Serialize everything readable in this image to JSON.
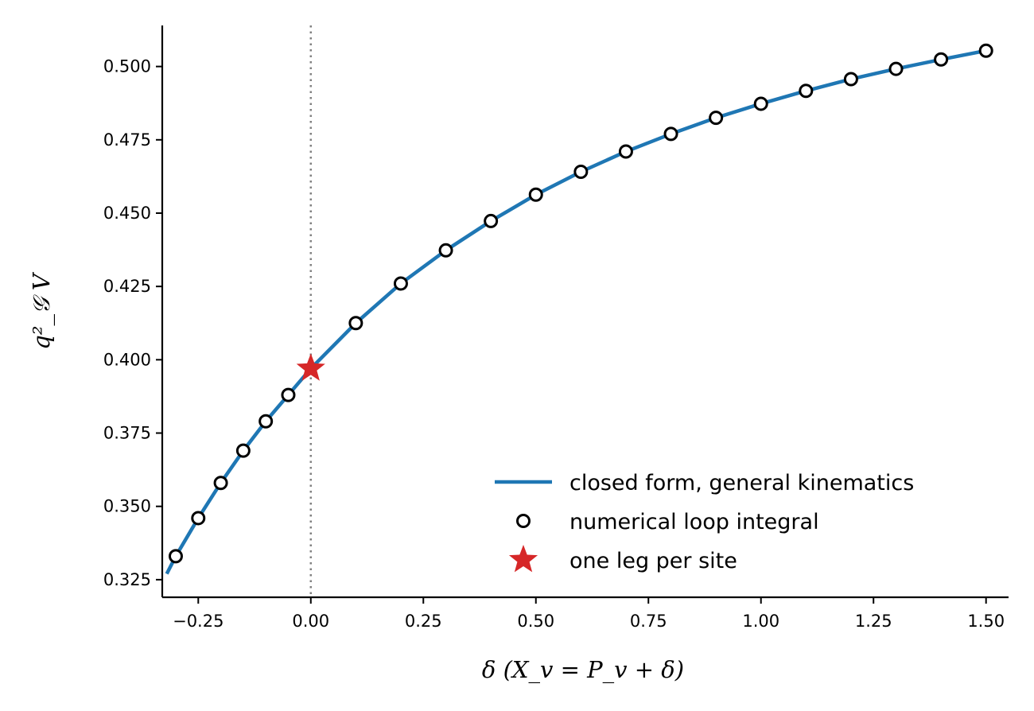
{
  "chart_data": {
    "type": "line",
    "title": "",
    "xlabel": "δ    (X_v = P_v + δ)",
    "ylabel": "q²_𝒢 V",
    "xlim": [
      -0.33,
      1.55
    ],
    "ylim": [
      0.319,
      0.514
    ],
    "x_ticks": [
      -0.25,
      0.0,
      0.25,
      0.5,
      0.75,
      1.0,
      1.25,
      1.5
    ],
    "x_tick_labels": [
      "−0.25",
      "0.00",
      "0.25",
      "0.50",
      "0.75",
      "1.00",
      "1.25",
      "1.50"
    ],
    "y_ticks": [
      0.325,
      0.35,
      0.375,
      0.4,
      0.425,
      0.45,
      0.475,
      0.5
    ],
    "y_tick_labels": [
      "0.325",
      "0.350",
      "0.375",
      "0.400",
      "0.425",
      "0.450",
      "0.475",
      "0.500"
    ],
    "grid": false,
    "legend_position": "lower-right",
    "reference_line": {
      "x": 0.0,
      "style": "dotted",
      "color": "#808080"
    },
    "series": [
      {
        "name": "closed form, general kinematics",
        "kind": "line",
        "color": "#1f77b4",
        "x": [
          -0.32,
          -0.3,
          -0.25,
          -0.2,
          -0.15,
          -0.1,
          -0.05,
          0.0,
          0.1,
          0.2,
          0.3,
          0.4,
          0.5,
          0.6,
          0.7,
          0.8,
          0.9,
          1.0,
          1.1,
          1.2,
          1.3,
          1.4,
          1.5
        ],
        "y": [
          0.327,
          0.333,
          0.346,
          0.358,
          0.369,
          0.379,
          0.388,
          0.397,
          0.4125,
          0.426,
          0.4373,
          0.4473,
          0.4563,
          0.4641,
          0.471,
          0.477,
          0.4825,
          0.4873,
          0.4917,
          0.4957,
          0.4992,
          0.5024,
          0.5054
        ]
      },
      {
        "name": "numerical loop integral",
        "kind": "scatter",
        "marker": "open-circle",
        "color": "#000000",
        "x": [
          -0.3,
          -0.25,
          -0.2,
          -0.15,
          -0.1,
          -0.05,
          0.1,
          0.2,
          0.3,
          0.4,
          0.5,
          0.6,
          0.7,
          0.8,
          0.9,
          1.0,
          1.1,
          1.2,
          1.3,
          1.4,
          1.5
        ],
        "y": [
          0.333,
          0.346,
          0.358,
          0.369,
          0.379,
          0.388,
          0.4125,
          0.426,
          0.4373,
          0.4473,
          0.4563,
          0.4641,
          0.471,
          0.477,
          0.4825,
          0.4873,
          0.4917,
          0.4957,
          0.4992,
          0.5024,
          0.5054
        ]
      },
      {
        "name": "one leg per site",
        "kind": "scatter",
        "marker": "star",
        "color": "#d62728",
        "x": [
          0.0
        ],
        "y": [
          0.397
        ]
      }
    ]
  }
}
